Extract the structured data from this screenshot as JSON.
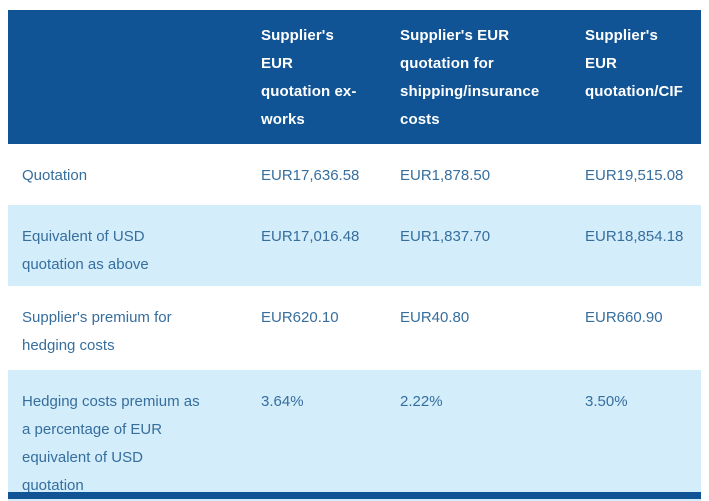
{
  "chart_data": {
    "type": "table",
    "columns": [
      "",
      "Supplier's EUR quotation ex-works",
      "Supplier's EUR quotation for shipping/insurance costs",
      "Supplier's EUR quotation/CIF"
    ],
    "rows": [
      {
        "label": "Quotation",
        "values": [
          "EUR17,636.58",
          "EUR1,878.50",
          "EUR19,515.08"
        ]
      },
      {
        "label": "Equivalent of USD quotation as above",
        "values": [
          "EUR17,016.48",
          "EUR1,837.70",
          "EUR18,854.18"
        ]
      },
      {
        "label": "Supplier's premium for hedging costs",
        "values": [
          "EUR620.10",
          "EUR40.80",
          "EUR660.90"
        ]
      },
      {
        "label": "Hedging costs premium as a percentage of EUR equivalent of USD quotation",
        "values": [
          "3.64%",
          "2.22%",
          "3.50%"
        ]
      }
    ]
  },
  "colors": {
    "header_bg": "#105496",
    "header_text": "#FFFFFF",
    "row_alt_bg": "#D3EDFA",
    "body_text": "#366E9E",
    "background": "#FFFFFF"
  }
}
